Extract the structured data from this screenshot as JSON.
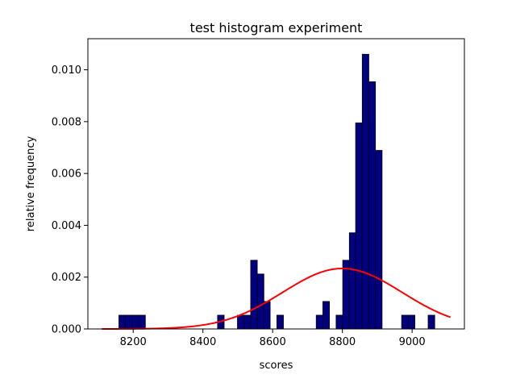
{
  "chart_data": {
    "type": "bar",
    "title": "test histogram experiment",
    "xlabel": "scores",
    "ylabel": "relative frequency",
    "xlim": [
      8070,
      9150
    ],
    "ylim": [
      0,
      0.0112
    ],
    "xticks": [
      8200,
      8400,
      8600,
      8800,
      9000
    ],
    "yticks": [
      0.0,
      0.002,
      0.004,
      0.006,
      0.008,
      0.01
    ],
    "ytick_labels": [
      "0.000",
      "0.002",
      "0.004",
      "0.006",
      "0.008",
      "0.010"
    ],
    "bin_width": 18.86,
    "bar_color": "#000080",
    "bar_edge_color": "#000000",
    "bins": [
      {
        "x": 8159,
        "value": 0.00053
      },
      {
        "x": 8178,
        "value": 0.00053
      },
      {
        "x": 8197,
        "value": 0.00053
      },
      {
        "x": 8216,
        "value": 0.00053
      },
      {
        "x": 8442,
        "value": 0.00053
      },
      {
        "x": 8499,
        "value": 0.00053
      },
      {
        "x": 8518,
        "value": 0.00053
      },
      {
        "x": 8537,
        "value": 0.00265
      },
      {
        "x": 8556,
        "value": 0.00212
      },
      {
        "x": 8574,
        "value": 0.00106
      },
      {
        "x": 8612,
        "value": 0.00053
      },
      {
        "x": 8725,
        "value": 0.00053
      },
      {
        "x": 8744,
        "value": 0.00106
      },
      {
        "x": 8782,
        "value": 0.00053
      },
      {
        "x": 8801,
        "value": 0.00265
      },
      {
        "x": 8820,
        "value": 0.00371
      },
      {
        "x": 8838,
        "value": 0.00795
      },
      {
        "x": 8857,
        "value": 0.0106
      },
      {
        "x": 8876,
        "value": 0.00954
      },
      {
        "x": 8895,
        "value": 0.00689
      },
      {
        "x": 8970,
        "value": 0.00053
      },
      {
        "x": 8989,
        "value": 0.00053
      },
      {
        "x": 9046,
        "value": 0.00053
      }
    ],
    "series": [
      {
        "type": "line",
        "color": "#ff0000",
        "curve": "normal-pdf",
        "mean": 8800,
        "std": 171,
        "x_range": [
          8110,
          9110
        ]
      }
    ],
    "grid": false,
    "legend": "none"
  }
}
